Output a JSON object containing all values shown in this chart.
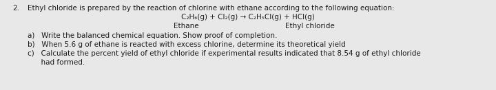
{
  "background_color": "#e8e8e8",
  "text_color": "#1a1a1a",
  "number": "2.",
  "line1": "Ethyl chloride is prepared by the reaction of chlorine with ethane according to the following equation:",
  "line2": "C₂H₆(g) + Cl₂(g) → C₂H₅Cl(g) + HCl(g)",
  "line3_left": "Ethane",
  "line3_right": "Ethyl chloride",
  "line_a": "a)   Write the balanced chemical equation. Show proof of completion.",
  "line_b": "b)   When 5.6 g of ethane is reacted with excess chlorine, determine its theoretical yield",
  "line_c1": "c)   Calculate the percent yield of ethyl chloride if experimental results indicated that 8.54 g of ethyl chloride",
  "line_c2": "      had formed.",
  "fontsize": 7.5,
  "figsize": [
    7.2,
    1.31
  ],
  "dpi": 100
}
